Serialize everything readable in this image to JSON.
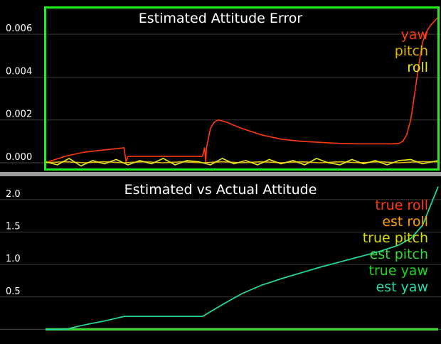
{
  "colors": {
    "yaw": "#ff3a10",
    "pitch": "#e2b400",
    "roll": "#e8e81e",
    "true_roll": "#ff3a10",
    "est_roll": "#ffa000",
    "true_pitch": "#d8e000",
    "est_pitch": "#39d839",
    "true_yaw": "#18d818",
    "est_yaw": "#20d8a8",
    "highlight_border": "#22ee22",
    "grid": "#3a3a3a",
    "text": "#ffffff"
  },
  "chart_data": [
    {
      "type": "line",
      "title": "Estimated Attitude Error",
      "xlabel": "",
      "ylabel": "",
      "ylim": [
        -0.0003,
        0.0072
      ],
      "y_ticks": [
        0.0,
        0.002,
        0.004,
        0.006
      ],
      "y_tick_labels": [
        "0.000",
        "0.002",
        "0.004",
        "0.006"
      ],
      "xlim": [
        0,
        1
      ],
      "grid": true,
      "legend_position": "top-right",
      "highlighted": true,
      "series": [
        {
          "name": "yaw",
          "color_key": "yaw",
          "x": [
            0.0,
            0.05,
            0.1,
            0.15,
            0.2,
            0.205,
            0.21,
            0.4,
            0.405,
            0.408,
            0.41,
            0.42,
            0.43,
            0.44,
            0.46,
            0.5,
            0.55,
            0.6,
            0.65,
            0.7,
            0.75,
            0.8,
            0.85,
            0.88,
            0.9,
            0.91,
            0.92,
            0.93,
            0.94,
            0.95,
            0.96,
            0.97,
            0.98,
            0.99,
            1.0
          ],
          "values": [
            0.0,
            0.0003,
            0.0005,
            0.0006,
            0.0007,
            5e-05,
            0.0003,
            0.0003,
            0.0007,
            5e-05,
            0.0007,
            0.0016,
            0.0019,
            0.002,
            0.0019,
            0.0016,
            0.0013,
            0.0011,
            0.001,
            0.00095,
            0.0009,
            0.00088,
            0.00088,
            0.00088,
            0.0009,
            0.001,
            0.0013,
            0.002,
            0.0032,
            0.0045,
            0.0056,
            0.0061,
            0.0064,
            0.0066,
            0.0068
          ]
        },
        {
          "name": "pitch",
          "color_key": "pitch",
          "x": [
            0.0,
            0.05,
            0.1,
            0.15,
            0.2,
            0.25,
            0.3,
            0.35,
            0.4,
            0.45,
            0.5,
            0.55,
            0.6,
            0.65,
            0.7,
            0.75,
            0.8,
            0.85,
            0.9,
            0.95,
            1.0
          ],
          "values": [
            0.0,
            5e-05,
            0.0,
            5e-05,
            0.0,
            5e-05,
            0.0,
            5e-05,
            0.0,
            5e-05,
            0.0,
            5e-05,
            0.0,
            5e-05,
            0.0,
            5e-05,
            0.0,
            5e-05,
            0.0,
            5e-05,
            5e-05
          ]
        },
        {
          "name": "roll",
          "color_key": "roll",
          "x": [
            0.0,
            0.03,
            0.06,
            0.09,
            0.12,
            0.15,
            0.18,
            0.21,
            0.24,
            0.27,
            0.3,
            0.33,
            0.36,
            0.39,
            0.42,
            0.45,
            0.48,
            0.51,
            0.54,
            0.57,
            0.6,
            0.63,
            0.66,
            0.69,
            0.72,
            0.75,
            0.78,
            0.81,
            0.84,
            0.87,
            0.9,
            0.93,
            0.96,
            1.0
          ],
          "values": [
            5e-05,
            -0.0001,
            0.0002,
            -0.00015,
            0.0001,
            -5e-05,
            0.00015,
            -0.0001,
            0.0001,
            -5e-05,
            0.0002,
            -0.0001,
            0.0001,
            5e-05,
            -0.0001,
            0.0002,
            -5e-05,
            0.0001,
            -0.0001,
            0.00015,
            -5e-05,
            0.0001,
            -0.0001,
            0.0002,
            0.0,
            -0.0001,
            0.00015,
            -5e-05,
            0.0001,
            -0.0001,
            0.0001,
            0.00015,
            -5e-05,
            0.0001
          ]
        }
      ]
    },
    {
      "type": "line",
      "title": "Estimated vs Actual Attitude",
      "xlabel": "",
      "ylabel": "",
      "ylim": [
        -0.05,
        2.25
      ],
      "y_ticks": [
        0.5,
        1.0,
        1.5,
        2.0
      ],
      "y_tick_labels": [
        "0.5",
        "1.0",
        "1.5",
        "2.0"
      ],
      "xlim": [
        0,
        1
      ],
      "grid": true,
      "legend_position": "top-right",
      "highlighted": false,
      "series": [
        {
          "name": "true roll",
          "color_key": "true_roll",
          "x": [
            0,
            1
          ],
          "values": [
            0,
            0
          ]
        },
        {
          "name": "est roll",
          "color_key": "est_roll",
          "x": [
            0,
            1
          ],
          "values": [
            0,
            0
          ]
        },
        {
          "name": "true pitch",
          "color_key": "true_pitch",
          "x": [
            0,
            1
          ],
          "values": [
            0,
            0
          ]
        },
        {
          "name": "est pitch",
          "color_key": "est_pitch",
          "x": [
            0,
            1
          ],
          "values": [
            0,
            0
          ]
        },
        {
          "name": "true yaw",
          "color_key": "true_yaw",
          "x": [
            0.0,
            0.05,
            0.1,
            0.15,
            0.2,
            0.205,
            0.4,
            0.45,
            0.5,
            0.55,
            0.6,
            0.65,
            0.7,
            0.75,
            0.8,
            0.85,
            0.9,
            0.93,
            0.96,
            1.0
          ],
          "values": [
            0.0,
            0.0,
            0.07,
            0.13,
            0.2,
            0.2,
            0.2,
            0.38,
            0.55,
            0.68,
            0.78,
            0.87,
            0.96,
            1.04,
            1.12,
            1.2,
            1.3,
            1.4,
            1.6,
            2.2
          ]
        },
        {
          "name": "est yaw",
          "color_key": "est_yaw",
          "x": [
            0.0,
            0.05,
            0.1,
            0.15,
            0.2,
            0.205,
            0.4,
            0.45,
            0.5,
            0.55,
            0.6,
            0.65,
            0.7,
            0.75,
            0.8,
            0.85,
            0.9,
            0.93,
            0.96,
            1.0
          ],
          "values": [
            0.0,
            0.0,
            0.07,
            0.13,
            0.2,
            0.2,
            0.2,
            0.38,
            0.55,
            0.68,
            0.78,
            0.87,
            0.96,
            1.04,
            1.12,
            1.2,
            1.3,
            1.4,
            1.6,
            2.2
          ]
        }
      ]
    }
  ]
}
